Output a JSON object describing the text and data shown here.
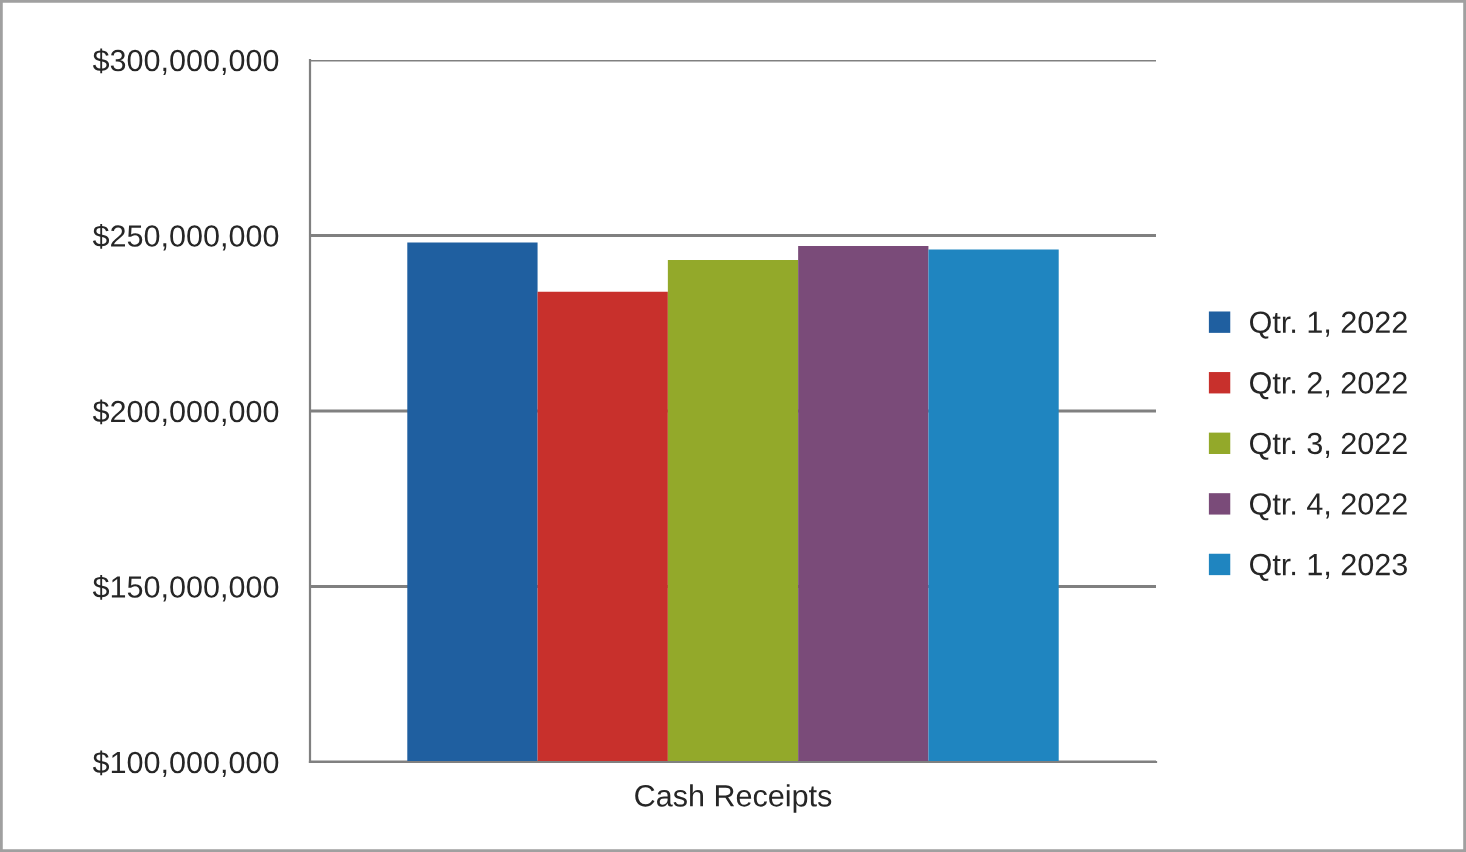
{
  "chart_data": {
    "type": "bar",
    "categories": [
      "Cash Receipts"
    ],
    "series": [
      {
        "name": "Qtr. 1, 2022",
        "color": "#1f5fa0",
        "values": [
          248000000
        ]
      },
      {
        "name": "Qtr. 2, 2022",
        "color": "#c8302c",
        "values": [
          234000000
        ]
      },
      {
        "name": "Qtr. 3, 2022",
        "color": "#93a92a",
        "values": [
          243000000
        ]
      },
      {
        "name": "Qtr. 4, 2022",
        "color": "#7a4b79",
        "values": [
          247000000
        ]
      },
      {
        "name": "Qtr. 1, 2023",
        "color": "#1f85c0",
        "values": [
          246000000
        ]
      }
    ],
    "ylim": [
      100000000,
      300000000
    ],
    "yticks": [
      {
        "value": 100000000,
        "label": "$100,000,000"
      },
      {
        "value": 150000000,
        "label": "$150,000,000"
      },
      {
        "value": 200000000,
        "label": "$200,000,000"
      },
      {
        "value": 250000000,
        "label": "$250,000,000"
      },
      {
        "value": 300000000,
        "label": "$300,000,000"
      }
    ],
    "grid": "y",
    "legend": "right"
  }
}
